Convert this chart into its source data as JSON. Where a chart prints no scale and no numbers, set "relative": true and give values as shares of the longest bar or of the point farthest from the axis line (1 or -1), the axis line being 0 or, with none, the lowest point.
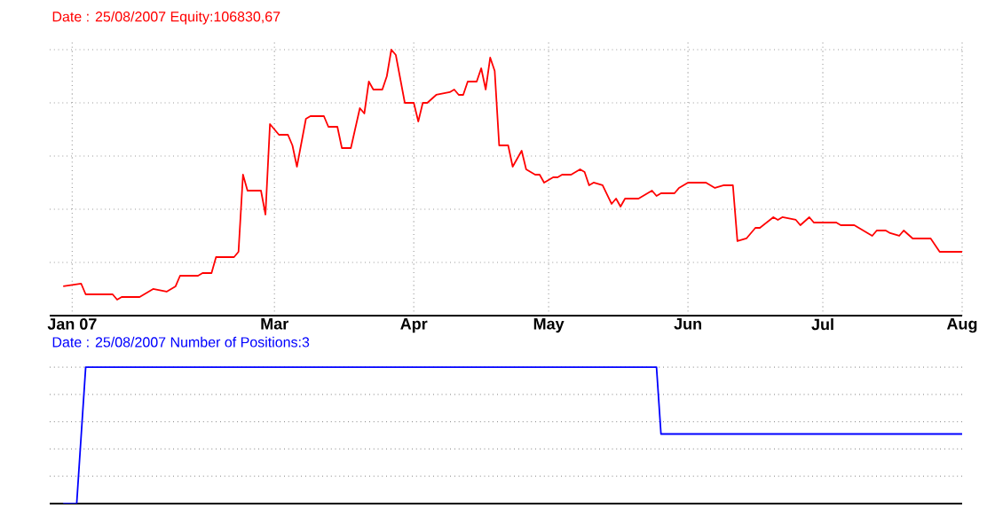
{
  "chart_data": [
    {
      "type": "line",
      "title": "Date : 25/08/2007    Equity:106830,67",
      "relative": true,
      "x": [
        "2007-01-13",
        "2007-01-17",
        "2007-01-18",
        "2007-01-24",
        "2007-01-25",
        "2007-01-26",
        "2007-01-30",
        "2007-02-02",
        "2007-02-05",
        "2007-02-07",
        "2007-02-08",
        "2007-02-12",
        "2007-02-13",
        "2007-02-15",
        "2007-02-16",
        "2007-02-20",
        "2007-02-21",
        "2007-02-22",
        "2007-02-23",
        "2007-02-26",
        "2007-02-27",
        "2007-02-28",
        "2007-03-02",
        "2007-03-04",
        "2007-03-05",
        "2007-03-06",
        "2007-03-08",
        "2007-03-09",
        "2007-03-12",
        "2007-03-13",
        "2007-03-15",
        "2007-03-16",
        "2007-03-18",
        "2007-03-20",
        "2007-03-21",
        "2007-03-22",
        "2007-03-23",
        "2007-03-25",
        "2007-03-26",
        "2007-03-27",
        "2007-03-28",
        "2007-03-30",
        "2007-04-01",
        "2007-04-02",
        "2007-04-03",
        "2007-04-04",
        "2007-04-06",
        "2007-04-09",
        "2007-04-10",
        "2007-04-11",
        "2007-04-12",
        "2007-04-13",
        "2007-04-15",
        "2007-04-16",
        "2007-04-17",
        "2007-04-18",
        "2007-04-19",
        "2007-04-20",
        "2007-04-22",
        "2007-04-23",
        "2007-04-25",
        "2007-04-26",
        "2007-04-28",
        "2007-04-29",
        "2007-04-30",
        "2007-05-02",
        "2007-05-03",
        "2007-05-04",
        "2007-05-06",
        "2007-05-08",
        "2007-05-09",
        "2007-05-10",
        "2007-05-11",
        "2007-05-13",
        "2007-05-15",
        "2007-05-16",
        "2007-05-17",
        "2007-05-18",
        "2007-05-21",
        "2007-05-24",
        "2007-05-25",
        "2007-05-26",
        "2007-05-29",
        "2007-05-30",
        "2007-06-01",
        "2007-06-05",
        "2007-06-07",
        "2007-06-09",
        "2007-06-11",
        "2007-06-12",
        "2007-06-14",
        "2007-06-16",
        "2007-06-17",
        "2007-06-20",
        "2007-06-21",
        "2007-06-22",
        "2007-06-25",
        "2007-06-26",
        "2007-06-28",
        "2007-06-29",
        "2007-07-04",
        "2007-07-05",
        "2007-07-08",
        "2007-07-12",
        "2007-07-13",
        "2007-07-15",
        "2007-07-16",
        "2007-07-18",
        "2007-07-19",
        "2007-07-21",
        "2007-07-25",
        "2007-07-27",
        "2007-08-01"
      ],
      "series": [
        {
          "color": "#ff0000",
          "values": [
            0.11,
            0.12,
            0.08,
            0.08,
            0.06,
            0.07,
            0.07,
            0.1,
            0.09,
            0.11,
            0.15,
            0.15,
            0.16,
            0.16,
            0.22,
            0.22,
            0.24,
            0.53,
            0.47,
            0.47,
            0.38,
            0.72,
            0.68,
            0.68,
            0.64,
            0.56,
            0.74,
            0.75,
            0.75,
            0.71,
            0.71,
            0.63,
            0.63,
            0.78,
            0.76,
            0.88,
            0.85,
            0.85,
            0.9,
            1.0,
            0.98,
            0.8,
            0.8,
            0.73,
            0.8,
            0.8,
            0.83,
            0.84,
            0.85,
            0.83,
            0.83,
            0.88,
            0.88,
            0.93,
            0.85,
            0.97,
            0.92,
            0.64,
            0.64,
            0.56,
            0.62,
            0.55,
            0.53,
            0.53,
            0.5,
            0.52,
            0.52,
            0.53,
            0.53,
            0.55,
            0.54,
            0.49,
            0.5,
            0.49,
            0.42,
            0.44,
            0.41,
            0.44,
            0.44,
            0.47,
            0.45,
            0.46,
            0.46,
            0.48,
            0.5,
            0.5,
            0.48,
            0.49,
            0.49,
            0.28,
            0.29,
            0.33,
            0.33,
            0.37,
            0.36,
            0.37,
            0.36,
            0.34,
            0.37,
            0.35,
            0.35,
            0.34,
            0.34,
            0.3,
            0.32,
            0.32,
            0.31,
            0.3,
            0.32,
            0.29,
            0.29,
            0.24,
            0.24
          ]
        }
      ],
      "xlim": [
        "2007-01-10",
        "2007-08-01"
      ],
      "xticks": [
        {
          "value": "2007-01-15",
          "label": "Jan 07"
        },
        {
          "value": "2007-03-01",
          "label": "Mar"
        },
        {
          "value": "2007-04-01",
          "label": "Apr"
        },
        {
          "value": "2007-05-01",
          "label": "May"
        },
        {
          "value": "2007-06-01",
          "label": "Jun"
        },
        {
          "value": "2007-07-01",
          "label": "Jul"
        },
        {
          "value": "2007-08-01",
          "label": "Aug"
        }
      ],
      "grid": true,
      "tick_labels": "x"
    },
    {
      "type": "line",
      "title": "Date : 25/08/2007    Number of Positions:3",
      "relative": true,
      "x": [
        "2007-01-13",
        "2007-01-16",
        "2007-01-18",
        "2007-05-25",
        "2007-05-26",
        "2007-08-01"
      ],
      "series": [
        {
          "color": "#0000ff",
          "values": [
            0,
            0,
            1,
            1,
            0.51,
            0.51
          ]
        }
      ],
      "xlim": [
        "2007-01-10",
        "2007-08-01"
      ],
      "grid": "y",
      "tick_labels": false
    }
  ]
}
